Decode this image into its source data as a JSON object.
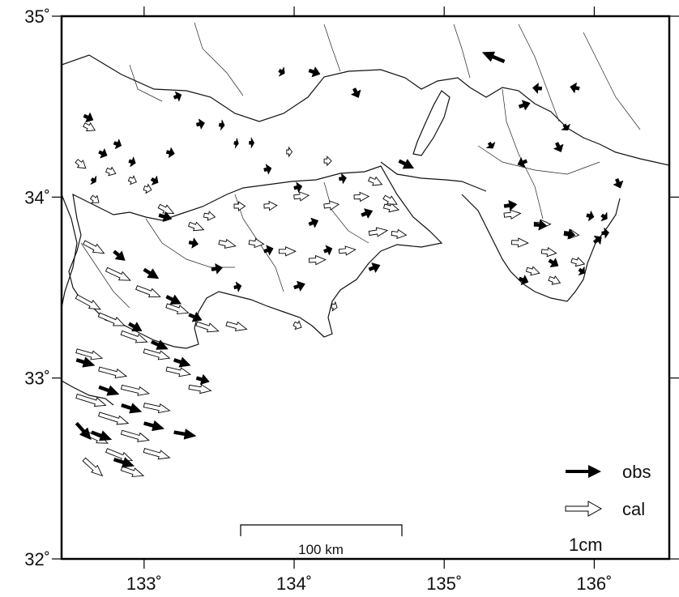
{
  "map": {
    "lon_range": [
      132.45,
      136.5
    ],
    "lat_range": [
      32.0,
      35.0
    ],
    "x_ticks": [
      {
        "value": 133,
        "label": "133˚"
      },
      {
        "value": 134,
        "label": "134˚"
      },
      {
        "value": 135,
        "label": "135˚"
      },
      {
        "value": 136,
        "label": "136˚"
      }
    ],
    "y_ticks": [
      {
        "value": 32,
        "label": "32˚"
      },
      {
        "value": 33,
        "label": "33˚"
      },
      {
        "value": 34,
        "label": "34˚"
      },
      {
        "value": 35,
        "label": "35˚"
      }
    ],
    "legend": {
      "obs_label": "obs",
      "cal_label": "cal",
      "reference_label": "1cm"
    },
    "scale_bar": {
      "label": "100 km",
      "length_km": 100
    },
    "colors": {
      "obs": "#000000",
      "cal_outline": "#000000",
      "cal_fill": "#ffffff",
      "coast": "#111111"
    },
    "displacement_units": "cm (mapped at approx. 45 px per cm)"
  },
  "vectors": {
    "obs": [
      [
        132.6,
        34.45,
        0.25,
        -0.12
      ],
      [
        132.7,
        34.25,
        0.22,
        -0.1
      ],
      [
        132.8,
        34.3,
        0.2,
        -0.08
      ],
      [
        132.9,
        34.2,
        0.18,
        -0.06
      ],
      [
        132.65,
        34.1,
        0.12,
        -0.08
      ],
      [
        133.05,
        34.1,
        0.18,
        -0.1
      ],
      [
        133.15,
        34.25,
        0.22,
        -0.05
      ],
      [
        133.2,
        34.55,
        0.2,
        0.08
      ],
      [
        133.35,
        34.4,
        0.22,
        0.05
      ],
      [
        133.5,
        34.4,
        0.15,
        -0.02
      ],
      [
        133.6,
        34.3,
        0.12,
        -0.02
      ],
      [
        133.7,
        34.3,
        0.14,
        0.0
      ],
      [
        133.9,
        34.7,
        0.15,
        -0.08
      ],
      [
        134.1,
        34.7,
        0.3,
        -0.1
      ],
      [
        134.4,
        34.6,
        0.12,
        -0.25
      ],
      [
        133.8,
        34.15,
        0.2,
        0.05
      ],
      [
        134.0,
        34.05,
        0.22,
        0.05
      ],
      [
        134.3,
        34.1,
        0.2,
        0.03
      ],
      [
        134.1,
        33.85,
        0.25,
        0.1
      ],
      [
        134.45,
        33.9,
        0.3,
        0.12
      ],
      [
        133.8,
        33.7,
        0.25,
        0.08
      ],
      [
        134.0,
        33.5,
        0.3,
        0.1
      ],
      [
        134.2,
        33.7,
        0.22,
        0.08
      ],
      [
        134.5,
        33.6,
        0.3,
        0.12
      ],
      [
        133.1,
        33.9,
        0.35,
        -0.1
      ],
      [
        133.3,
        33.75,
        0.25,
        -0.05
      ],
      [
        133.45,
        33.6,
        0.3,
        0.05
      ],
      [
        133.6,
        33.5,
        0.2,
        0.05
      ],
      [
        132.8,
        33.7,
        0.3,
        -0.25
      ],
      [
        133.0,
        33.6,
        0.4,
        -0.25
      ],
      [
        133.15,
        33.45,
        0.4,
        -0.2
      ],
      [
        133.3,
        33.35,
        0.35,
        -0.15
      ],
      [
        132.9,
        33.3,
        0.35,
        -0.2
      ],
      [
        133.05,
        33.2,
        0.45,
        -0.2
      ],
      [
        133.2,
        33.1,
        0.45,
        -0.15
      ],
      [
        133.35,
        33.0,
        0.35,
        -0.1
      ],
      [
        132.55,
        33.1,
        0.5,
        -0.15
      ],
      [
        132.7,
        32.95,
        0.55,
        -0.2
      ],
      [
        132.85,
        32.85,
        0.55,
        -0.18
      ],
      [
        133.0,
        32.75,
        0.55,
        -0.15
      ],
      [
        133.2,
        32.7,
        0.6,
        -0.1
      ],
      [
        132.65,
        32.7,
        0.55,
        -0.2
      ],
      [
        132.8,
        32.55,
        0.55,
        -0.18
      ],
      [
        132.55,
        32.75,
        0.4,
        -0.45
      ],
      [
        134.7,
        34.2,
        0.4,
        -0.2
      ],
      [
        135.4,
        34.75,
        -0.6,
        0.25
      ],
      [
        135.5,
        34.5,
        0.3,
        0.1
      ],
      [
        135.65,
        34.6,
        -0.25,
        0.02
      ],
      [
        135.9,
        34.6,
        -0.25,
        0.05
      ],
      [
        135.8,
        34.4,
        0.1,
        -0.15
      ],
      [
        135.75,
        34.3,
        0.12,
        -0.25
      ],
      [
        135.55,
        34.2,
        -0.25,
        -0.1
      ],
      [
        135.3,
        34.3,
        0.1,
        -0.15
      ],
      [
        135.4,
        33.95,
        0.35,
        0.05
      ],
      [
        135.6,
        33.85,
        0.35,
        -0.05
      ],
      [
        135.8,
        33.8,
        0.3,
        -0.05
      ],
      [
        135.95,
        33.9,
        0.2,
        -0.05
      ],
      [
        136.05,
        33.9,
        0.15,
        -0.1
      ],
      [
        135.7,
        33.65,
        0.25,
        -0.15
      ],
      [
        135.9,
        33.6,
        0.15,
        -0.1
      ],
      [
        136.0,
        33.75,
        0.2,
        0.15
      ],
      [
        136.15,
        34.1,
        0.1,
        -0.25
      ],
      [
        135.5,
        33.55,
        0.25,
        -0.1
      ],
      [
        136.05,
        33.8,
        0.2,
        0.02
      ]
    ],
    "cal": [
      [
        132.6,
        34.4,
        0.3,
        -0.15
      ],
      [
        132.75,
        34.15,
        0.25,
        -0.1
      ],
      [
        132.9,
        34.1,
        0.2,
        -0.08
      ],
      [
        133.0,
        34.05,
        0.2,
        -0.05
      ],
      [
        133.1,
        33.95,
        0.4,
        -0.2
      ],
      [
        133.3,
        33.85,
        0.4,
        -0.15
      ],
      [
        133.5,
        33.75,
        0.45,
        -0.1
      ],
      [
        133.7,
        33.75,
        0.4,
        -0.05
      ],
      [
        133.9,
        33.7,
        0.45,
        0.0
      ],
      [
        134.1,
        33.65,
        0.45,
        0.02
      ],
      [
        134.3,
        33.7,
        0.45,
        0.05
      ],
      [
        134.5,
        33.8,
        0.5,
        0.08
      ],
      [
        134.0,
        34.0,
        0.4,
        0.05
      ],
      [
        134.2,
        33.95,
        0.4,
        0.05
      ],
      [
        134.4,
        34.0,
        0.4,
        0.02
      ],
      [
        134.6,
        33.95,
        0.4,
        -0.1
      ],
      [
        134.65,
        33.8,
        0.4,
        -0.05
      ],
      [
        133.8,
        33.95,
        0.35,
        0.02
      ],
      [
        133.6,
        33.95,
        0.3,
        0.0
      ],
      [
        133.4,
        33.9,
        0.3,
        -0.05
      ],
      [
        132.6,
        33.75,
        0.55,
        -0.3
      ],
      [
        132.75,
        33.6,
        0.65,
        -0.3
      ],
      [
        132.95,
        33.5,
        0.65,
        -0.25
      ],
      [
        133.15,
        33.4,
        0.6,
        -0.2
      ],
      [
        133.35,
        33.3,
        0.6,
        -0.2
      ],
      [
        133.55,
        33.3,
        0.55,
        -0.15
      ],
      [
        132.55,
        33.45,
        0.65,
        -0.35
      ],
      [
        132.7,
        33.35,
        0.7,
        -0.3
      ],
      [
        132.85,
        33.25,
        0.7,
        -0.25
      ],
      [
        133.0,
        33.15,
        0.7,
        -0.2
      ],
      [
        133.15,
        33.05,
        0.65,
        -0.15
      ],
      [
        133.3,
        32.95,
        0.6,
        -0.1
      ],
      [
        132.55,
        33.15,
        0.7,
        -0.2
      ],
      [
        132.7,
        33.05,
        0.75,
        -0.2
      ],
      [
        132.85,
        32.95,
        0.75,
        -0.18
      ],
      [
        133.0,
        32.85,
        0.7,
        -0.15
      ],
      [
        132.55,
        32.9,
        0.8,
        -0.25
      ],
      [
        132.7,
        32.8,
        0.8,
        -0.25
      ],
      [
        132.85,
        32.7,
        0.75,
        -0.22
      ],
      [
        133.0,
        32.6,
        0.7,
        -0.2
      ],
      [
        132.6,
        32.7,
        0.65,
        -0.3
      ],
      [
        132.75,
        32.6,
        0.7,
        -0.28
      ],
      [
        132.6,
        32.55,
        0.5,
        -0.45
      ],
      [
        132.85,
        32.5,
        0.6,
        -0.2
      ],
      [
        135.4,
        33.9,
        0.45,
        0.05
      ],
      [
        135.6,
        33.85,
        0.45,
        0.0
      ],
      [
        135.8,
        33.8,
        0.4,
        -0.05
      ],
      [
        135.45,
        33.75,
        0.45,
        -0.02
      ],
      [
        135.65,
        33.7,
        0.4,
        -0.05
      ],
      [
        135.85,
        33.65,
        0.35,
        -0.1
      ],
      [
        135.55,
        33.6,
        0.35,
        -0.1
      ],
      [
        135.7,
        33.55,
        0.3,
        -0.12
      ],
      [
        134.5,
        34.1,
        0.35,
        -0.15
      ],
      [
        134.6,
        34.0,
        0.35,
        -0.2
      ],
      [
        134.2,
        34.2,
        0.2,
        0.0
      ],
      [
        133.95,
        34.25,
        0.15,
        0.0
      ],
      [
        132.55,
        34.2,
        0.25,
        -0.2
      ],
      [
        132.65,
        34.0,
        0.2,
        -0.15
      ],
      [
        134.0,
        33.3,
        0.2,
        -0.1
      ],
      [
        134.25,
        33.4,
        0.15,
        -0.05
      ]
    ]
  }
}
